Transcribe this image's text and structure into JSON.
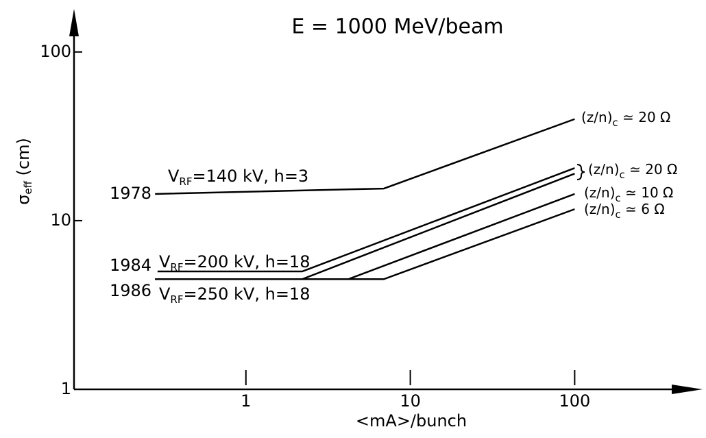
{
  "chart_data": {
    "type": "line",
    "title": "E = 1000 MeV/beam",
    "x_label": "<mA>/bunch",
    "y_label": {
      "text": "σ",
      "sub": "eff",
      "rest": " (cm)"
    },
    "log_x": true,
    "log_y": true,
    "xlim": [
      0.09,
      600
    ],
    "ylim": [
      1,
      180
    ],
    "xticks": [
      1,
      10,
      100
    ],
    "yticks": [
      1,
      10,
      100
    ],
    "color": "#000000",
    "series": [
      {
        "x": [
          0.28,
          6.9,
          100
        ],
        "values": [
          14.4,
          15.5,
          40
        ]
      },
      {
        "x": [
          0.29,
          2.2,
          100
        ],
        "values": [
          5.0,
          5.0,
          20.5
        ]
      },
      {
        "x": [
          0.28,
          2.2,
          100
        ],
        "values": [
          4.5,
          4.5,
          19
        ]
      },
      {
        "x": [
          0.28,
          4.2,
          100
        ],
        "values": [
          4.5,
          4.5,
          14.4
        ]
      },
      {
        "x": [
          0.28,
          6.9,
          100
        ],
        "values": [
          4.5,
          4.5,
          11.7
        ]
      }
    ],
    "annotations": [
      {
        "text": "1978"
      },
      {
        "text": "V",
        "sub": "RF",
        "rest": "=140 kV, h=3"
      },
      {
        "text": "1984"
      },
      {
        "text": "V",
        "sub": "RF",
        "rest": "=200 kV, h=18"
      },
      {
        "text": "1986"
      },
      {
        "text": "V",
        "sub": "RF",
        "rest": "=250 kV, h=18"
      },
      {
        "text": "(z/n)",
        "sub": "c",
        "rest": " ≃ 20 Ω"
      },
      {
        "text": "(z/n)",
        "sub": "c",
        "rest": " ≃ 20 Ω"
      },
      {
        "text": "(z/n)",
        "sub": "c",
        "rest": " ≃ 10 Ω"
      },
      {
        "text": "(z/n)",
        "sub": "c",
        "rest": " ≃ 6 Ω"
      }
    ]
  }
}
